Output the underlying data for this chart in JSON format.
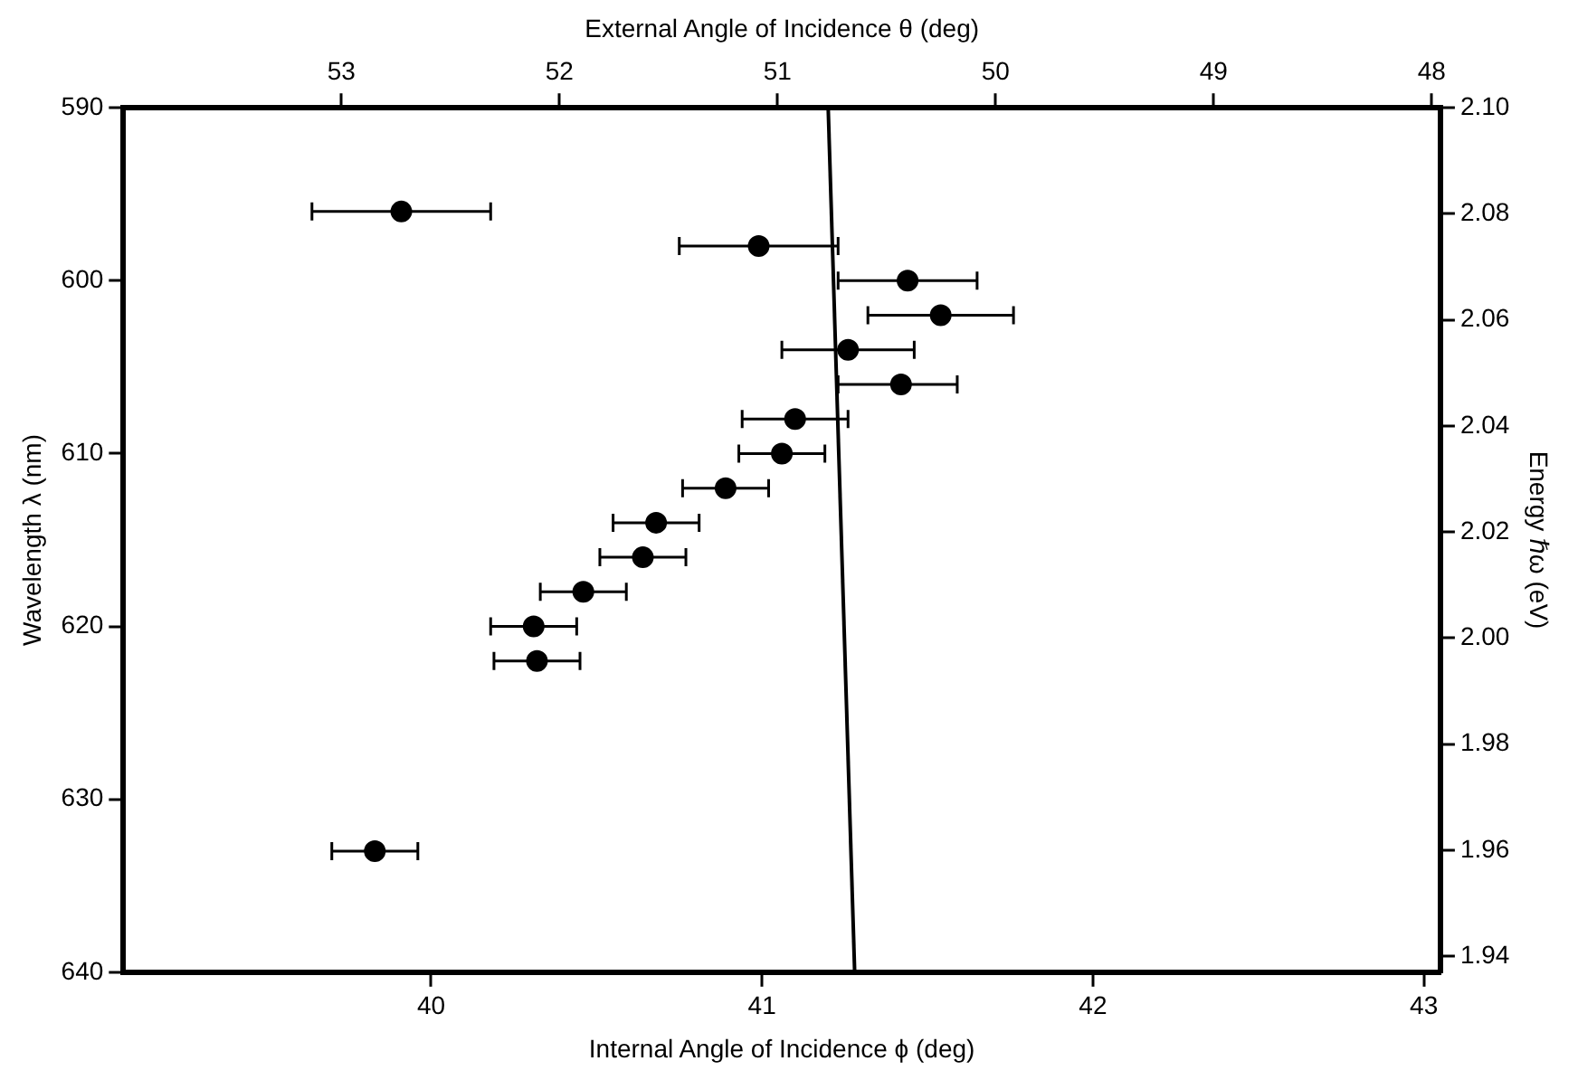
{
  "chart_data": {
    "type": "scatter",
    "xlabel": "Internal Angle of Incidence ϕ (deg)",
    "x2label": "External Angle of Incidence θ (deg)",
    "ylabel": "Wavelength λ (nm)",
    "y2label": "Energy ℏω (eV)",
    "xlim": [
      39.07,
      43.05
    ],
    "xticks": [
      40,
      41,
      42,
      43
    ],
    "x2lim": [
      54,
      47.96
    ],
    "x2ticks": [
      53,
      52,
      51,
      50,
      49,
      48
    ],
    "ylim": [
      640,
      590
    ],
    "yticks": [
      590,
      600,
      610,
      620,
      630,
      640
    ],
    "y2lim": [
      1.937,
      2.1
    ],
    "y2ticks": [
      {
        "value": 1.94,
        "label": "1.94"
      },
      {
        "value": 1.96,
        "label": "1.96"
      },
      {
        "value": 1.98,
        "label": "1.98"
      },
      {
        "value": 2.0,
        "label": "2.00"
      },
      {
        "value": 2.02,
        "label": "2.02"
      },
      {
        "value": 2.04,
        "label": "2.04"
      },
      {
        "value": 2.06,
        "label": "2.06"
      },
      {
        "value": 2.08,
        "label": "2.08"
      },
      {
        "value": 2.1,
        "label": "2.10"
      }
    ],
    "grid": false,
    "legend": false,
    "marker": "circle",
    "series": [
      {
        "type": "scatter",
        "color": "#000000",
        "x": [
          39.91,
          40.99,
          41.44,
          41.54,
          41.26,
          41.42,
          41.1,
          41.06,
          40.89,
          40.68,
          40.64,
          40.46,
          40.31,
          40.32,
          39.83
        ],
        "values": [
          596,
          598,
          600,
          602,
          604,
          606,
          608,
          610,
          612,
          614,
          616,
          618,
          620,
          622,
          633
        ],
        "xerrors": [
          0.27,
          0.24,
          0.21,
          0.22,
          0.2,
          [
            41.23,
            41.59
          ],
          0.16,
          0.13,
          0.13,
          0.13,
          0.13,
          0.13,
          0.13,
          0.13,
          0.13
        ]
      },
      {
        "type": "line",
        "color": "#000000",
        "marker": "none",
        "line_style": "solid",
        "x": [
          41.2,
          41.28
        ],
        "values": [
          590,
          640
        ]
      }
    ]
  }
}
